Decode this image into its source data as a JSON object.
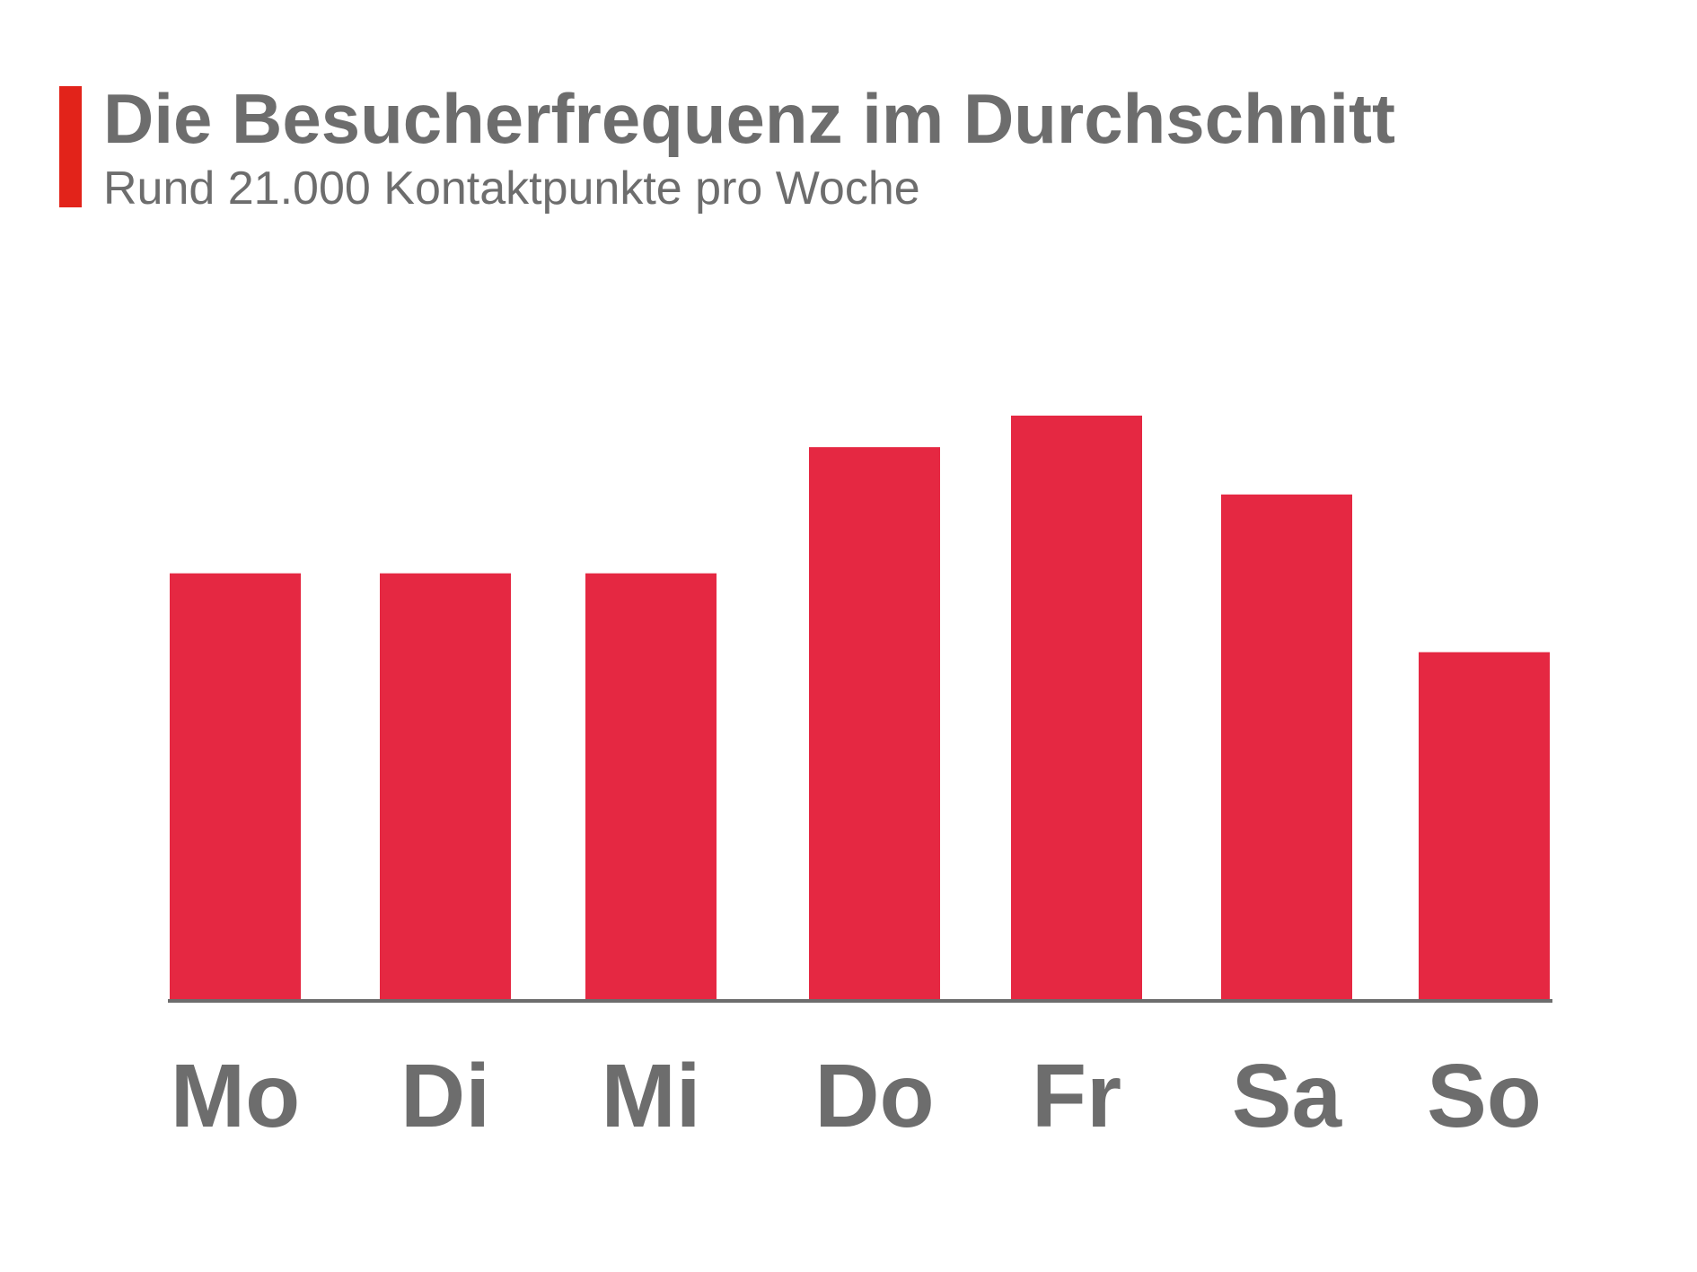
{
  "header": {
    "title": "Die Besucherfrequenz im Durchschnitt",
    "subtitle": "Rund 21.000 Kontaktpunkte pro Woche"
  },
  "colors": {
    "accent": "#e2231a",
    "bar": "#e52842",
    "text": "#6d6d6d",
    "axis": "#6d6d6d"
  },
  "chart_data": {
    "type": "bar",
    "title": "Die Besucherfrequenz im Durchschnitt",
    "subtitle": "Rund 21.000 Kontaktpunkte pro Woche",
    "categories": [
      "Mo",
      "Di",
      "Mi",
      "Do",
      "Fr",
      "Sa",
      "So"
    ],
    "values": [
      2700,
      2700,
      2700,
      3500,
      3700,
      3200,
      2200
    ],
    "xlabel": "",
    "ylabel": "",
    "ylim": [
      0,
      3700
    ],
    "grid": false,
    "legend": "none"
  }
}
